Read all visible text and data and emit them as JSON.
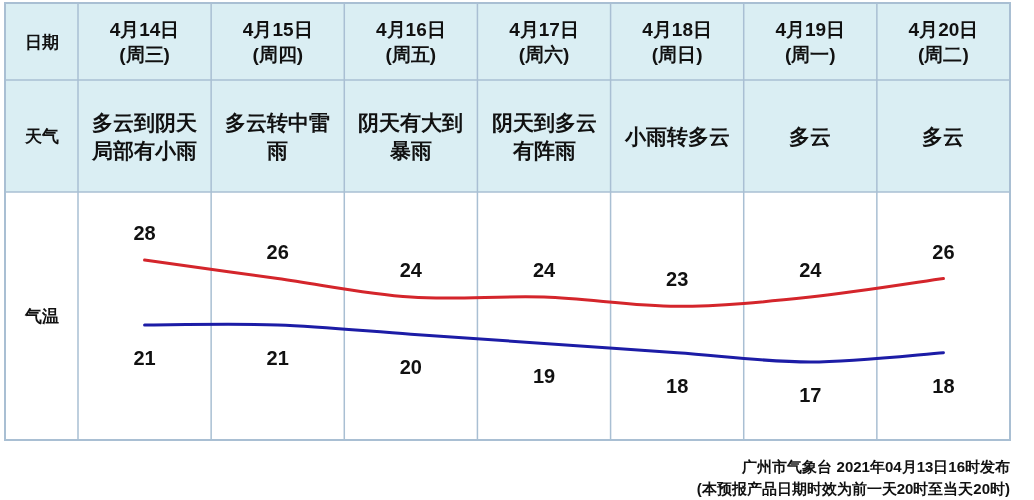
{
  "chart_data": {
    "type": "line",
    "marker": "none",
    "data_labels": true,
    "categories": [
      "4月14日\n(周三)",
      "4月15日\n(周四)",
      "4月16日\n(周五)",
      "4月17日\n(周六)",
      "4月18日\n(周日)",
      "4月19日\n(周一)",
      "4月20日\n(周二)"
    ],
    "series": [
      {
        "color": "#d4252b",
        "values": [
          28,
          26,
          24,
          24,
          23,
          24,
          26
        ]
      },
      {
        "color": "#1c1ca6",
        "values": [
          21,
          21,
          20,
          19,
          18,
          17,
          18
        ]
      }
    ],
    "annotations": [
      "日期",
      "天气",
      "气温",
      "多云到阴天局部有小雨",
      "多云转中雷雨",
      "阴天有大到暴雨",
      "阴天到多云有阵雨",
      "小雨转多云",
      "多云",
      "多云",
      "广州市气象台 2021年04月13日16时发布",
      "(本预报产品日期时效为前一天20时至当天20时)"
    ]
  }
}
